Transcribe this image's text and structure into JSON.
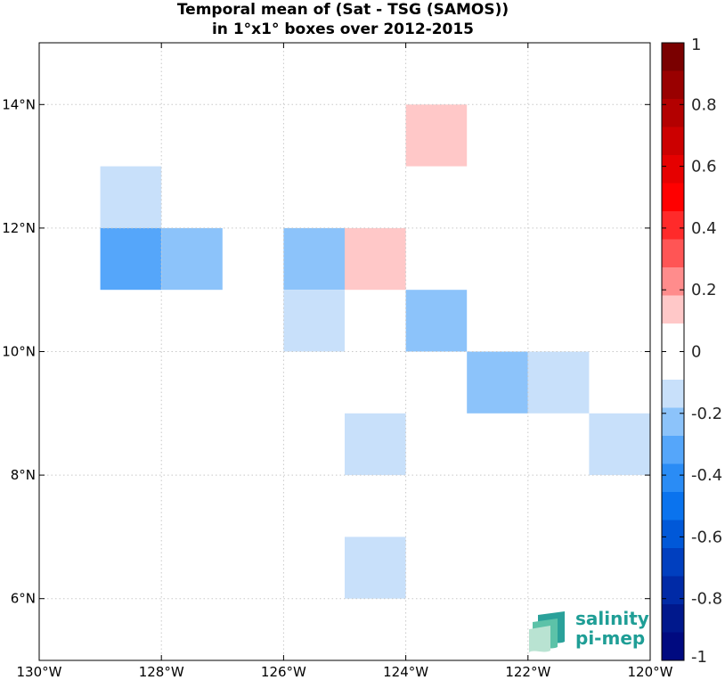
{
  "chart_data": {
    "type": "heatmap",
    "title": "Temporal mean of (Sat - TSG (SAMOS))",
    "subtitle": "in 1°x1° boxes over 2012-2015",
    "xlim": [
      -130,
      -120
    ],
    "ylim": [
      5,
      15
    ],
    "x_ticks": [
      -130,
      -128,
      -126,
      -124,
      -122,
      -120
    ],
    "x_tick_labels": [
      "130°W",
      "128°W",
      "126°W",
      "124°W",
      "122°W",
      "120°W"
    ],
    "y_ticks": [
      6,
      8,
      10,
      12,
      14
    ],
    "y_tick_labels": [
      "6°N",
      "8°N",
      "10°N",
      "12°N",
      "14°N"
    ],
    "grid": true,
    "cells": [
      {
        "lon": -124,
        "lat": 13,
        "value": 0.15
      },
      {
        "lon": -129,
        "lat": 12,
        "value": -0.15
      },
      {
        "lon": -129,
        "lat": 11,
        "value": -0.35
      },
      {
        "lon": -128,
        "lat": 11,
        "value": -0.25
      },
      {
        "lon": -126,
        "lat": 11,
        "value": -0.25
      },
      {
        "lon": -125,
        "lat": 11,
        "value": 0.15
      },
      {
        "lon": -126,
        "lat": 10,
        "value": -0.15
      },
      {
        "lon": -124,
        "lat": 10,
        "value": -0.25
      },
      {
        "lon": -123,
        "lat": 9,
        "value": -0.25
      },
      {
        "lon": -122,
        "lat": 9,
        "value": -0.15
      },
      {
        "lon": -125,
        "lat": 8,
        "value": -0.15
      },
      {
        "lon": -121,
        "lat": 8,
        "value": -0.15
      },
      {
        "lon": -125,
        "lat": 6,
        "value": -0.15
      }
    ],
    "colorbar": {
      "range": [
        -1,
        1
      ],
      "tick_values": [
        1,
        0.8,
        0.6,
        0.4,
        0.2,
        0,
        -0.2,
        -0.4,
        -0.6,
        -0.8,
        -1
      ],
      "tick_labels": [
        "1",
        "0.8",
        "0.6",
        "0.4",
        "0.2",
        "0",
        "-0.2",
        "-0.4",
        "-0.6",
        "-0.8",
        "-1"
      ],
      "colors": [
        "#7a0000",
        "#990000",
        "#b30000",
        "#cc0000",
        "#e60000",
        "#ff0000",
        "#ff2a2a",
        "#ff5555",
        "#ff8c8c",
        "#ffc8c8",
        "#ffffff",
        "#ffffff",
        "#c8e0fa",
        "#8cc3fa",
        "#55a6fa",
        "#2a8cf5",
        "#0a73ee",
        "#0058d8",
        "#003fbf",
        "#002aa6",
        "#00188c",
        "#000a80"
      ]
    }
  },
  "logo": {
    "line1": "salinity",
    "line2": "pi-mep"
  }
}
